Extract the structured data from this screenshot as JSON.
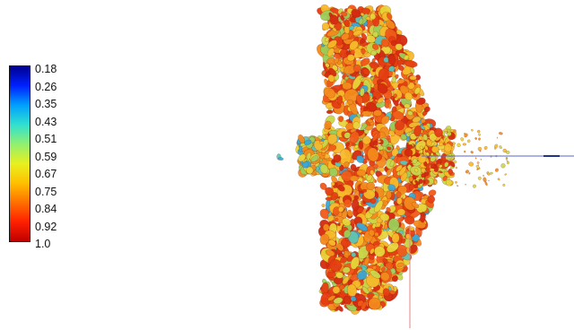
{
  "legend": {
    "ticks": [
      "0.18",
      "0.26",
      "0.35",
      "0.43",
      "0.51",
      "0.59",
      "0.67",
      "0.75",
      "0.84",
      "0.92",
      "1.0"
    ],
    "gradient_colors": [
      "#00008f",
      "#0020ff",
      "#00a0ff",
      "#30e0d0",
      "#90f070",
      "#e8f020",
      "#ffc000",
      "#ff7000",
      "#ff2000",
      "#c00000"
    ]
  },
  "scene": {
    "background": "#ffffff",
    "palette": [
      "#d42a10",
      "#e53d12",
      "#f05a18",
      "#f28a1c",
      "#f7b92a",
      "#e8d43a",
      "#c8d84a",
      "#9bcf5a",
      "#58c6b8",
      "#39a9d6"
    ],
    "axis_x_color": "#5566cc",
    "axis_y_color": "#e08585"
  }
}
